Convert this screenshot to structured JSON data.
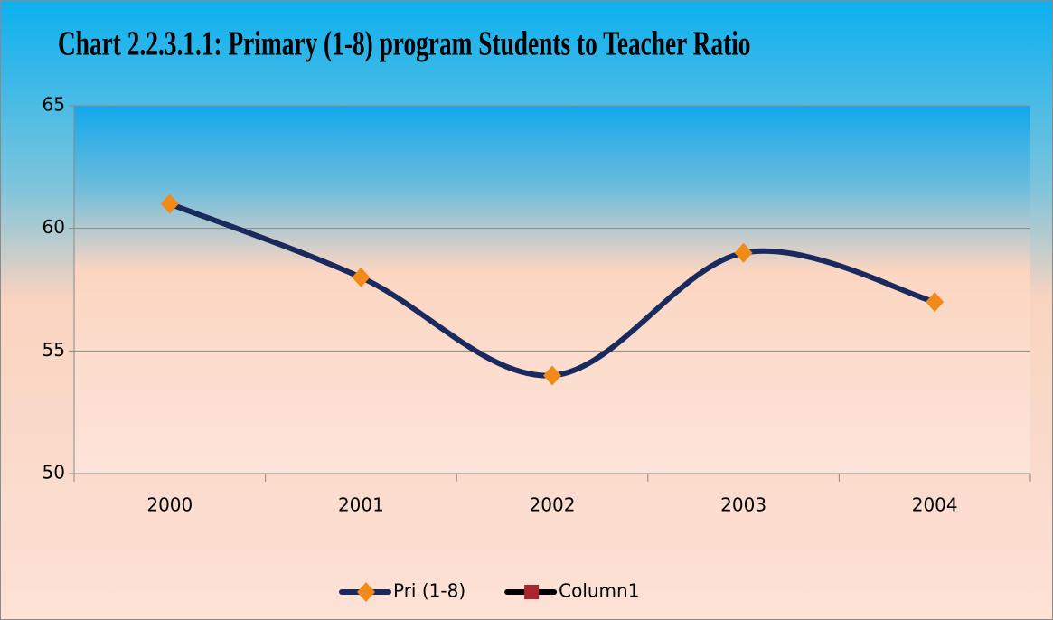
{
  "chart_data": {
    "type": "line",
    "title": "Chart 2.2.3.1.1: Primary (1-8) program Students to Teacher Ratio",
    "categories": [
      "2000",
      "2001",
      "2002",
      "2003",
      "2004"
    ],
    "series": [
      {
        "name": "Pri (1-8)",
        "color": "#1a2a5e",
        "marker_color": "#f28a1a",
        "marker": "diamond",
        "values": [
          61,
          58,
          54,
          59,
          57
        ]
      },
      {
        "name": "Column1",
        "color": "#000000",
        "marker_color": "#a8262e",
        "marker": "square",
        "values": [
          null,
          null,
          null,
          null,
          null
        ]
      }
    ],
    "ylim": [
      50,
      65
    ],
    "yticks": [
      50,
      55,
      60,
      65
    ],
    "grid": true,
    "smooth": true,
    "legend": "bottom"
  }
}
